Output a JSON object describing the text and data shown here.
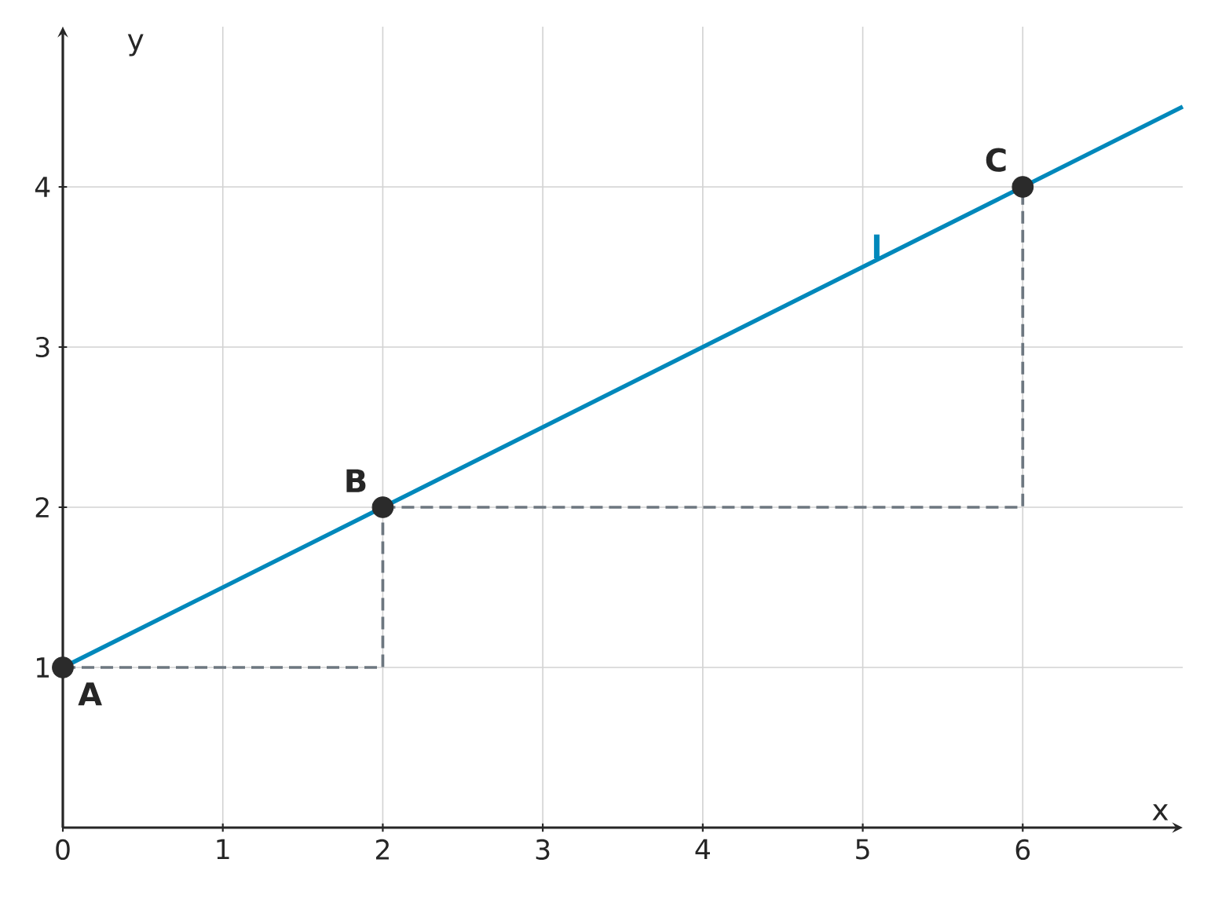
{
  "chart_data": {
    "type": "line",
    "xlabel": "x",
    "ylabel": "y",
    "xlim": [
      0,
      7
    ],
    "ylim": [
      0,
      5
    ],
    "xticks": [
      0,
      1,
      2,
      3,
      4,
      5,
      6
    ],
    "yticks": [
      1,
      2,
      3,
      4
    ],
    "grid": true,
    "series": [
      {
        "name": "l",
        "color": "#0088bb",
        "x": [
          0,
          7
        ],
        "values": [
          1,
          4.5
        ],
        "line_style": "solid",
        "marker": "none"
      },
      {
        "color": "#6d7780",
        "x": [
          0,
          2,
          2
        ],
        "values": [
          1,
          1,
          2
        ],
        "line_style": "dashed",
        "marker": "none"
      },
      {
        "color": "#6d7780",
        "x": [
          2,
          6,
          6
        ],
        "values": [
          2,
          2,
          4
        ],
        "line_style": "dashed",
        "marker": "none"
      },
      {
        "type": "scatter",
        "color": "#2b2b2b",
        "x": [
          0,
          2,
          6
        ],
        "values": [
          1,
          2,
          4
        ],
        "marker": "circle"
      }
    ],
    "annotations": [
      {
        "text": "A",
        "x": 0,
        "y": 1
      },
      {
        "text": "B",
        "x": 2,
        "y": 2
      },
      {
        "text": "C",
        "x": 6,
        "y": 4
      }
    ]
  }
}
